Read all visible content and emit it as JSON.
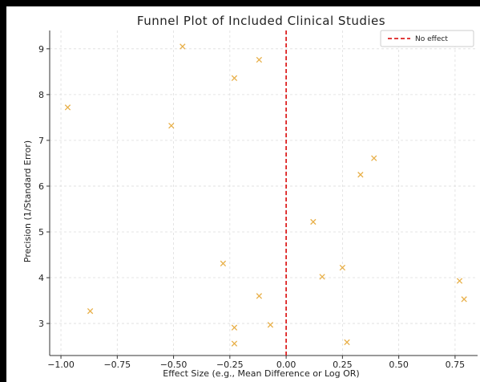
{
  "chart_data": {
    "type": "scatter",
    "title": "Funnel Plot of Included Clinical Studies",
    "xlabel": "Effect Size (e.g., Mean Difference or Log OR)",
    "ylabel": "Precision (1/Standard Error)",
    "xlim": [
      -1.05,
      0.85
    ],
    "ylim": [
      2.3,
      9.4
    ],
    "x_ticks": [
      -1.0,
      -0.75,
      -0.5,
      -0.25,
      0.0,
      0.25,
      0.5,
      0.75
    ],
    "x_tick_labels": [
      "−1.00",
      "−0.75",
      "−0.50",
      "−0.25",
      "0.00",
      "0.25",
      "0.50",
      "0.75"
    ],
    "y_ticks": [
      3,
      4,
      5,
      6,
      7,
      8,
      9
    ],
    "y_tick_labels": [
      "3",
      "4",
      "5",
      "6",
      "7",
      "8",
      "9"
    ],
    "grid": true,
    "marker": "x",
    "point_color": "#e8b04a",
    "reference_line": {
      "x": 0.0,
      "label": "No effect",
      "style": "dashed",
      "color": "#dd2222"
    },
    "legend": {
      "position": "top-right",
      "entries": [
        "No effect"
      ]
    },
    "points": [
      {
        "x": -0.46,
        "y": 9.05
      },
      {
        "x": -0.12,
        "y": 8.76
      },
      {
        "x": -0.23,
        "y": 8.36
      },
      {
        "x": -0.97,
        "y": 7.72
      },
      {
        "x": -0.51,
        "y": 7.32
      },
      {
        "x": 0.39,
        "y": 6.61
      },
      {
        "x": 0.33,
        "y": 6.25
      },
      {
        "x": 0.12,
        "y": 5.22
      },
      {
        "x": -0.28,
        "y": 4.31
      },
      {
        "x": 0.25,
        "y": 4.22
      },
      {
        "x": 0.16,
        "y": 4.02
      },
      {
        "x": 0.77,
        "y": 3.93
      },
      {
        "x": -0.12,
        "y": 3.6
      },
      {
        "x": 0.79,
        "y": 3.53
      },
      {
        "x": -0.87,
        "y": 3.27
      },
      {
        "x": -0.07,
        "y": 2.97
      },
      {
        "x": -0.23,
        "y": 2.91
      },
      {
        "x": 0.27,
        "y": 2.59
      },
      {
        "x": -0.23,
        "y": 2.56
      }
    ]
  }
}
